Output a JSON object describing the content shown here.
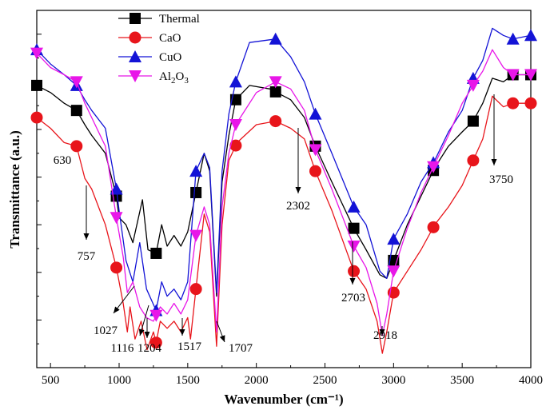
{
  "chart_data": {
    "type": "line",
    "xlabel": "Wavenumber (cm⁻¹)",
    "ylabel": "Transmittance (a.u.)",
    "xlim": [
      400,
      4000
    ],
    "ylim": [
      0,
      1
    ],
    "grid": false,
    "legend_position": "top-left",
    "x_ticks": [
      "500",
      "1000",
      "1500",
      "2000",
      "2500",
      "3000",
      "3500",
      "4000"
    ],
    "series": [
      {
        "name": "Thermal",
        "marker": "square",
        "color": "#000000",
        "points": [
          [
            400,
            0.79
          ],
          [
            500,
            0.77
          ],
          [
            600,
            0.74
          ],
          [
            690,
            0.72
          ],
          [
            750,
            0.68
          ],
          [
            800,
            0.65
          ],
          [
            900,
            0.6
          ],
          [
            980,
            0.48
          ],
          [
            1000,
            0.42
          ],
          [
            1050,
            0.4
          ],
          [
            1100,
            0.35
          ],
          [
            1170,
            0.47
          ],
          [
            1210,
            0.33
          ],
          [
            1270,
            0.32
          ],
          [
            1310,
            0.4
          ],
          [
            1350,
            0.34
          ],
          [
            1400,
            0.37
          ],
          [
            1450,
            0.34
          ],
          [
            1500,
            0.38
          ],
          [
            1560,
            0.49
          ],
          [
            1620,
            0.6
          ],
          [
            1660,
            0.55
          ],
          [
            1710,
            0.2
          ],
          [
            1750,
            0.52
          ],
          [
            1800,
            0.65
          ],
          [
            1850,
            0.75
          ],
          [
            1950,
            0.79
          ],
          [
            2100,
            0.78
          ],
          [
            2250,
            0.75
          ],
          [
            2350,
            0.7
          ],
          [
            2430,
            0.62
          ],
          [
            2550,
            0.52
          ],
          [
            2710,
            0.39
          ],
          [
            2800,
            0.33
          ],
          [
            2900,
            0.26
          ],
          [
            2950,
            0.25
          ],
          [
            3000,
            0.3
          ],
          [
            3100,
            0.4
          ],
          [
            3200,
            0.48
          ],
          [
            3300,
            0.56
          ],
          [
            3400,
            0.62
          ],
          [
            3500,
            0.66
          ],
          [
            3580,
            0.69
          ],
          [
            3650,
            0.74
          ],
          [
            3720,
            0.81
          ],
          [
            3800,
            0.8
          ],
          [
            3870,
            0.82
          ],
          [
            4000,
            0.82
          ]
        ]
      },
      {
        "name": "CaO",
        "marker": "circle",
        "color": "#e8151b",
        "points": [
          [
            400,
            0.7
          ],
          [
            500,
            0.67
          ],
          [
            600,
            0.63
          ],
          [
            690,
            0.62
          ],
          [
            750,
            0.53
          ],
          [
            800,
            0.5
          ],
          [
            900,
            0.4
          ],
          [
            980,
            0.28
          ],
          [
            1030,
            0.18
          ],
          [
            1060,
            0.1
          ],
          [
            1080,
            0.17
          ],
          [
            1116,
            0.08
          ],
          [
            1160,
            0.13
          ],
          [
            1204,
            0.05
          ],
          [
            1250,
            0.1
          ],
          [
            1270,
            0.07
          ],
          [
            1300,
            0.13
          ],
          [
            1350,
            0.11
          ],
          [
            1400,
            0.13
          ],
          [
            1450,
            0.1
          ],
          [
            1500,
            0.14
          ],
          [
            1520,
            0.08
          ],
          [
            1560,
            0.22
          ],
          [
            1620,
            0.43
          ],
          [
            1660,
            0.38
          ],
          [
            1710,
            0.06
          ],
          [
            1750,
            0.4
          ],
          [
            1800,
            0.58
          ],
          [
            1860,
            0.63
          ],
          [
            2000,
            0.68
          ],
          [
            2140,
            0.69
          ],
          [
            2250,
            0.67
          ],
          [
            2350,
            0.64
          ],
          [
            2430,
            0.55
          ],
          [
            2550,
            0.44
          ],
          [
            2710,
            0.27
          ],
          [
            2800,
            0.22
          ],
          [
            2880,
            0.13
          ],
          [
            2918,
            0.04
          ],
          [
            2950,
            0.1
          ],
          [
            3000,
            0.21
          ],
          [
            3100,
            0.27
          ],
          [
            3200,
            0.33
          ],
          [
            3300,
            0.4
          ],
          [
            3400,
            0.45
          ],
          [
            3500,
            0.51
          ],
          [
            3580,
            0.58
          ],
          [
            3650,
            0.64
          ],
          [
            3720,
            0.76
          ],
          [
            3800,
            0.73
          ],
          [
            3870,
            0.74
          ],
          [
            4000,
            0.74
          ]
        ]
      },
      {
        "name": "CuO",
        "marker": "triangle-up",
        "color": "#1313d6",
        "points": [
          [
            400,
            0.89
          ],
          [
            500,
            0.85
          ],
          [
            600,
            0.82
          ],
          [
            690,
            0.79
          ],
          [
            750,
            0.75
          ],
          [
            800,
            0.72
          ],
          [
            900,
            0.67
          ],
          [
            980,
            0.5
          ],
          [
            1000,
            0.44
          ],
          [
            1050,
            0.3
          ],
          [
            1100,
            0.24
          ],
          [
            1150,
            0.35
          ],
          [
            1200,
            0.22
          ],
          [
            1270,
            0.16
          ],
          [
            1310,
            0.24
          ],
          [
            1350,
            0.2
          ],
          [
            1400,
            0.22
          ],
          [
            1450,
            0.19
          ],
          [
            1500,
            0.24
          ],
          [
            1560,
            0.55
          ],
          [
            1620,
            0.6
          ],
          [
            1660,
            0.56
          ],
          [
            1710,
            0.21
          ],
          [
            1750,
            0.55
          ],
          [
            1800,
            0.71
          ],
          [
            1850,
            0.8
          ],
          [
            1950,
            0.91
          ],
          [
            2140,
            0.92
          ],
          [
            2250,
            0.87
          ],
          [
            2350,
            0.8
          ],
          [
            2430,
            0.71
          ],
          [
            2550,
            0.6
          ],
          [
            2710,
            0.45
          ],
          [
            2800,
            0.4
          ],
          [
            2900,
            0.27
          ],
          [
            2950,
            0.25
          ],
          [
            3000,
            0.36
          ],
          [
            3100,
            0.43
          ],
          [
            3200,
            0.52
          ],
          [
            3300,
            0.58
          ],
          [
            3400,
            0.66
          ],
          [
            3500,
            0.72
          ],
          [
            3580,
            0.81
          ],
          [
            3650,
            0.86
          ],
          [
            3720,
            0.95
          ],
          [
            3800,
            0.93
          ],
          [
            3870,
            0.92
          ],
          [
            4000,
            0.93
          ]
        ]
      },
      {
        "name": "Al₂O₃",
        "name_main": "Al",
        "name_sub1": "2",
        "name_mid": "O",
        "name_sub2": "3",
        "marker": "triangle-down",
        "color": "#e816e8",
        "points": [
          [
            400,
            0.88
          ],
          [
            500,
            0.84
          ],
          [
            600,
            0.82
          ],
          [
            690,
            0.8
          ],
          [
            750,
            0.74
          ],
          [
            800,
            0.7
          ],
          [
            900,
            0.62
          ],
          [
            980,
            0.42
          ],
          [
            1030,
            0.31
          ],
          [
            1060,
            0.21
          ],
          [
            1100,
            0.24
          ],
          [
            1150,
            0.17
          ],
          [
            1200,
            0.14
          ],
          [
            1250,
            0.13
          ],
          [
            1300,
            0.17
          ],
          [
            1350,
            0.15
          ],
          [
            1400,
            0.18
          ],
          [
            1450,
            0.15
          ],
          [
            1500,
            0.19
          ],
          [
            1560,
            0.37
          ],
          [
            1620,
            0.45
          ],
          [
            1660,
            0.4
          ],
          [
            1710,
            0.1
          ],
          [
            1750,
            0.45
          ],
          [
            1800,
            0.6
          ],
          [
            1850,
            0.68
          ],
          [
            2000,
            0.77
          ],
          [
            2140,
            0.8
          ],
          [
            2250,
            0.78
          ],
          [
            2350,
            0.72
          ],
          [
            2430,
            0.61
          ],
          [
            2550,
            0.5
          ],
          [
            2710,
            0.34
          ],
          [
            2800,
            0.28
          ],
          [
            2880,
            0.18
          ],
          [
            2918,
            0.09
          ],
          [
            2950,
            0.15
          ],
          [
            3000,
            0.27
          ],
          [
            3100,
            0.39
          ],
          [
            3200,
            0.49
          ],
          [
            3300,
            0.57
          ],
          [
            3400,
            0.65
          ],
          [
            3500,
            0.74
          ],
          [
            3580,
            0.79
          ],
          [
            3650,
            0.83
          ],
          [
            3720,
            0.89
          ],
          [
            3800,
            0.84
          ],
          [
            3870,
            0.82
          ],
          [
            4000,
            0.82
          ]
        ]
      }
    ],
    "annotations": [
      {
        "label": "630",
        "x": 630
      },
      {
        "label": "757",
        "x": 757
      },
      {
        "label": "1027",
        "x": 1027
      },
      {
        "label": "1116",
        "x": 1116
      },
      {
        "label": "1204",
        "x": 1204
      },
      {
        "label": "1517",
        "x": 1517
      },
      {
        "label": "1707",
        "x": 1707
      },
      {
        "label": "2302",
        "x": 2302
      },
      {
        "label": "2703",
        "x": 2703
      },
      {
        "label": "2918",
        "x": 2918
      },
      {
        "label": "3750",
        "x": 3750
      }
    ]
  }
}
